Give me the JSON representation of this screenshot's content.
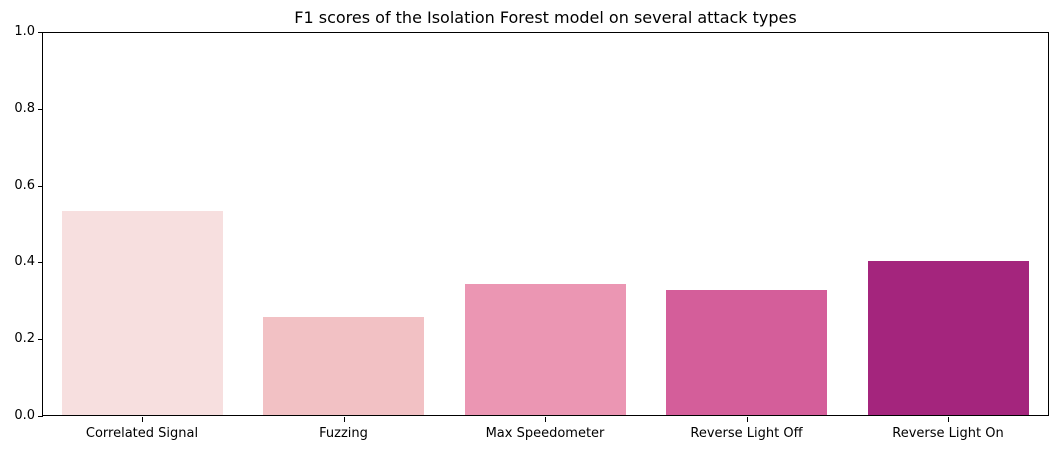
{
  "chart_data": {
    "type": "bar",
    "title": "F1 scores of the Isolation Forest model on several attack types",
    "xlabel": "",
    "ylabel": "",
    "ylim": [
      0,
      1.0
    ],
    "yticks": [
      "0.0",
      "0.2",
      "0.4",
      "0.6",
      "0.8",
      "1.0"
    ],
    "grid": false,
    "legend": null,
    "categories": [
      "Correlated Signal",
      "Fuzzing",
      "Max Speedometer",
      "Reverse Light Off",
      "Reverse Light On"
    ],
    "values": [
      0.53,
      0.255,
      0.34,
      0.326,
      0.402
    ],
    "colors": [
      "#f7dfdf",
      "#f2c1c4",
      "#eb96b3",
      "#d45e9a",
      "#a4257d"
    ]
  }
}
